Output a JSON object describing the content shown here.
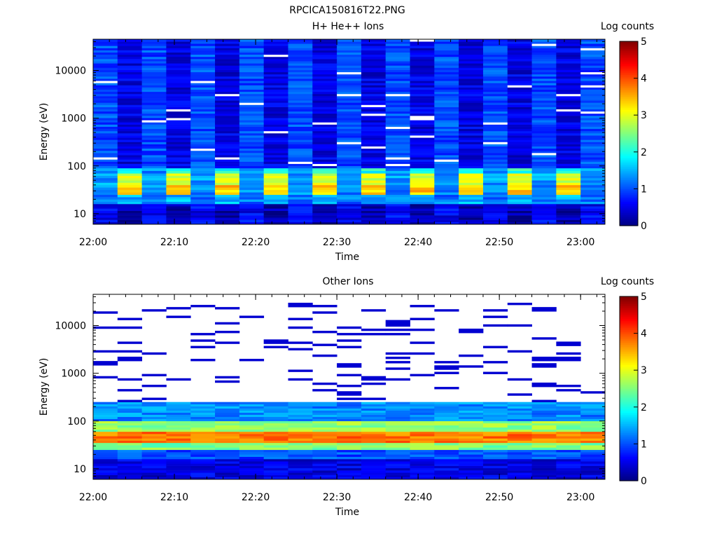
{
  "figure_title": "RPCICA150816T22.PNG",
  "chart_data": [
    {
      "type": "heatmap",
      "title": "H+ He++ Ions",
      "xlabel": "Time",
      "ylabel": "Energy (eV)",
      "y_scale": "log",
      "ylim": [
        6,
        45000
      ],
      "xlim": [
        "22:00",
        "23:03"
      ],
      "x_ticks": [
        "22:00",
        "22:10",
        "22:20",
        "22:30",
        "22:40",
        "22:50",
        "23:00"
      ],
      "y_ticks": [
        "10",
        "100",
        "1000",
        "10000"
      ],
      "colorbar": {
        "label": "Log counts",
        "min": 0,
        "max": 5,
        "ticks": [
          "0",
          "1",
          "2",
          "3",
          "4",
          "5"
        ],
        "colormap": "jet"
      },
      "time_bins": [
        "22:00",
        "22:03",
        "22:06",
        "22:09",
        "22:12",
        "22:15",
        "22:18",
        "22:21",
        "22:24",
        "22:27",
        "22:30",
        "22:33",
        "22:36",
        "22:39",
        "22:42",
        "22:45",
        "22:48",
        "22:51",
        "22:54",
        "22:57",
        "23:00"
      ],
      "band_profile": {
        "energy_bins": [
          "5-16 eV",
          "16-25 eV",
          "25-40 eV",
          "40-70 eV",
          "70-90 eV",
          "90 eV-45 keV"
        ],
        "odd_bins_log_counts": [
          0.2,
          1.5,
          3.4,
          2.9,
          2.0,
          0.5
        ],
        "even_bins_log_counts": [
          0.6,
          1.2,
          1.3,
          1.4,
          1.3,
          1.0
        ]
      }
    },
    {
      "type": "heatmap",
      "title": "Other Ions",
      "xlabel": "Time",
      "ylabel": "Energy (eV)",
      "y_scale": "log",
      "ylim": [
        6,
        45000
      ],
      "xlim": [
        "22:00",
        "23:03"
      ],
      "x_ticks": [
        "22:00",
        "22:10",
        "22:20",
        "22:30",
        "22:40",
        "22:50",
        "23:00"
      ],
      "y_ticks": [
        "10",
        "100",
        "1000",
        "10000"
      ],
      "colorbar": {
        "label": "Log counts",
        "min": 0,
        "max": 5,
        "ticks": [
          "0",
          "1",
          "2",
          "3",
          "4",
          "5"
        ],
        "colormap": "jet"
      },
      "time_bins": [
        "22:00",
        "22:03",
        "22:06",
        "22:09",
        "22:12",
        "22:15",
        "22:18",
        "22:21",
        "22:24",
        "22:27",
        "22:30",
        "22:33",
        "22:36",
        "22:39",
        "22:42",
        "22:45",
        "22:48",
        "22:51",
        "22:54",
        "22:57",
        "23:00"
      ],
      "band_profile": {
        "energy_bins": [
          "5-16 eV",
          "16-25 eV",
          "25-35 eV",
          "35-60 eV",
          "60-100 eV",
          "100-250 eV",
          "250 eV-30 keV"
        ],
        "log_counts": [
          0.5,
          1.0,
          2.5,
          3.8,
          2.6,
          1.3,
          0.2
        ]
      }
    }
  ]
}
